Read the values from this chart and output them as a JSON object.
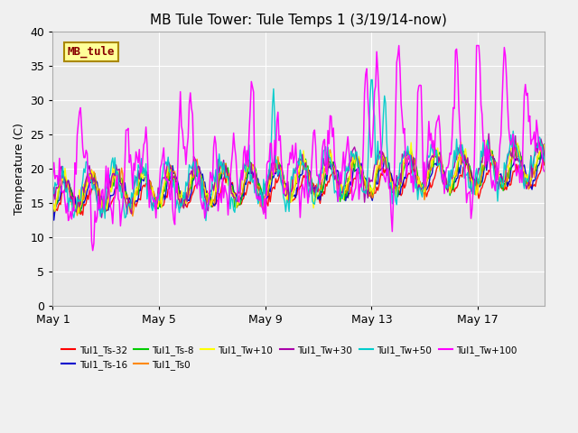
{
  "title": "MB Tule Tower: Tule Temps 1 (3/19/14-now)",
  "ylabel": "Temperature (C)",
  "ylim": [
    0,
    40
  ],
  "yticks": [
    0,
    5,
    10,
    15,
    20,
    25,
    30,
    35,
    40
  ],
  "xtick_positions": [
    0,
    4,
    8,
    12,
    16
  ],
  "xtick_labels": [
    "May 1",
    "May 5",
    "May 9",
    "May 13",
    "May 17"
  ],
  "xlim": [
    0,
    18.5
  ],
  "plot_bg_color": "#e8e8e8",
  "fig_bg_color": "#f0f0f0",
  "series": [
    {
      "name": "Tul1_Ts-32",
      "color": "#ff0000"
    },
    {
      "name": "Tul1_Ts-16",
      "color": "#0000cc"
    },
    {
      "name": "Tul1_Ts-8",
      "color": "#00cc00"
    },
    {
      "name": "Tul1_Ts0",
      "color": "#ff8800"
    },
    {
      "name": "Tul1_Tw+10",
      "color": "#ffff00"
    },
    {
      "name": "Tul1_Tw+30",
      "color": "#aa00aa"
    },
    {
      "name": "Tul1_Tw+50",
      "color": "#00cccc"
    },
    {
      "name": "Tul1_Tw+100",
      "color": "#ff00ff"
    }
  ],
  "legend_box_text": "MB_tule",
  "legend_box_color": "#ffff99",
  "legend_box_border": "#aa8800",
  "legend_ncol": 6
}
